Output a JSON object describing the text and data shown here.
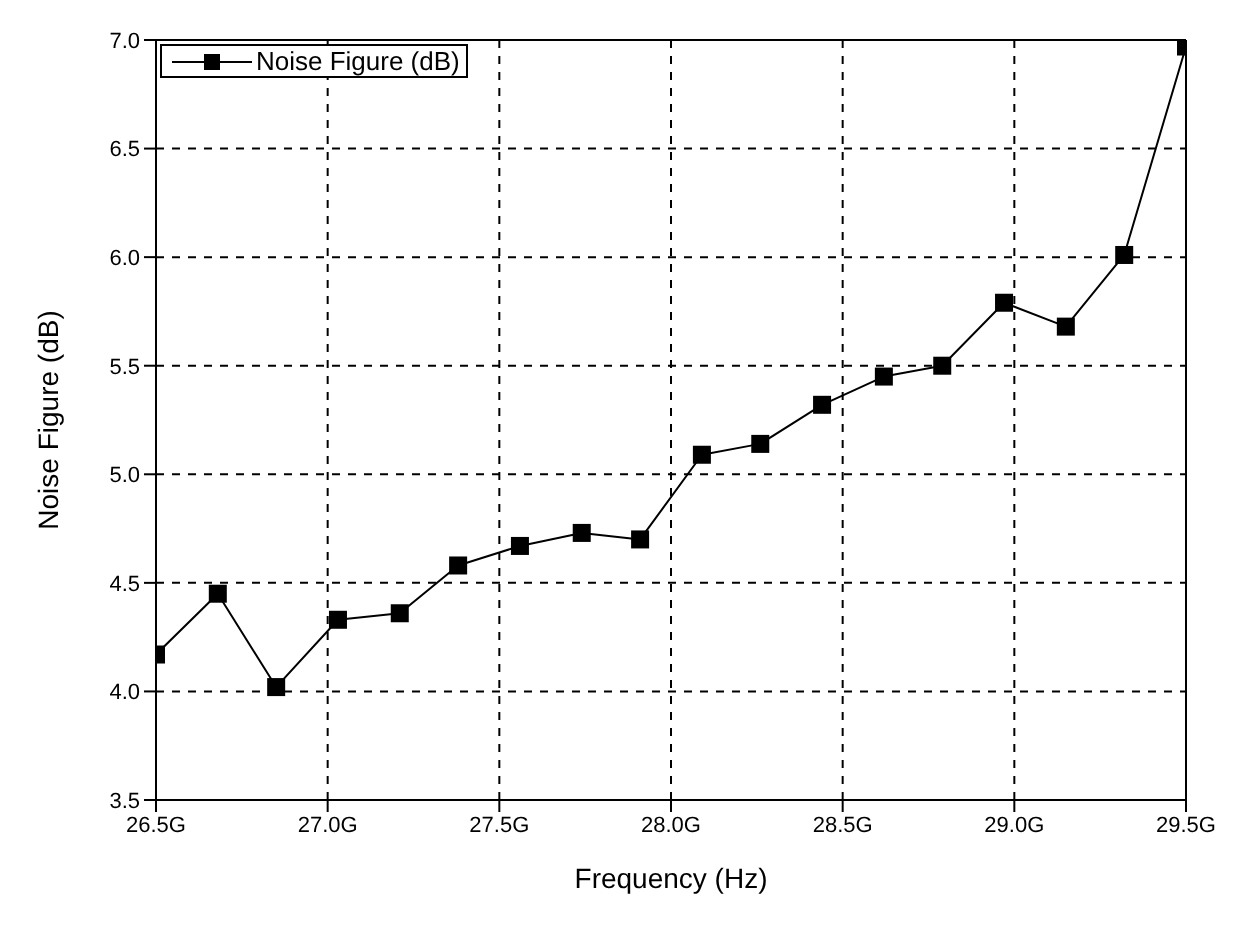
{
  "chart_data": {
    "type": "line",
    "xlabel": "Frequency (Hz)",
    "ylabel": "Noise Figure (dB)",
    "x": [
      26.5,
      26.68,
      26.85,
      27.03,
      27.21,
      27.38,
      27.56,
      27.74,
      27.91,
      28.09,
      28.26,
      28.44,
      28.62,
      28.79,
      28.97,
      29.15,
      29.32,
      29.5
    ],
    "series": [
      {
        "name": "Noise Figure (dB)",
        "color": "#000000",
        "values": [
          4.17,
          4.45,
          4.02,
          4.33,
          4.36,
          4.58,
          4.67,
          4.73,
          4.7,
          5.09,
          5.14,
          5.32,
          5.45,
          5.5,
          5.79,
          5.68,
          6.01,
          6.97
        ]
      }
    ],
    "xlim": [
      26.5,
      29.5
    ],
    "xticks": [
      {
        "value": 26.5,
        "label": "26.5G"
      },
      {
        "value": 27,
        "label": "27.0G"
      },
      {
        "value": 27.5,
        "label": "27.5G"
      },
      {
        "value": 28,
        "label": "28.0G"
      },
      {
        "value": 28.5,
        "label": "28.5G"
      },
      {
        "value": 29,
        "label": "29.0G"
      },
      {
        "value": 29.5,
        "label": "29.5G"
      }
    ],
    "ylim": [
      3.5,
      7
    ],
    "yticks": [
      3.5,
      {
        "value": 4,
        "label": "4.0"
      },
      4.5,
      {
        "value": 5,
        "label": "5.0"
      },
      5.5,
      {
        "value": 6,
        "label": "6.0"
      },
      6.5,
      {
        "value": 7,
        "label": "7.0"
      }
    ],
    "grid": true,
    "legend": "top left",
    "marker": "square",
    "line_style": "solid"
  }
}
